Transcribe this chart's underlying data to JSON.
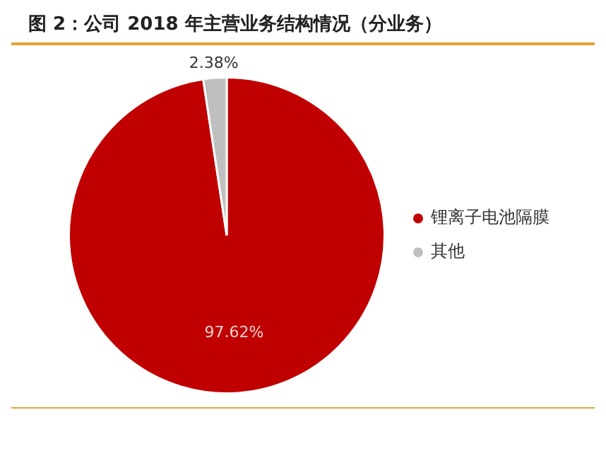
{
  "chart_data": {
    "type": "pie",
    "title": "图 2：公司 2018 年主营业务结构情况（分业务）",
    "categories": [
      "锂离子电池隔膜",
      "其他"
    ],
    "values": [
      97.62,
      2.38
    ],
    "colors": [
      "#c00000",
      "#bfbfbf"
    ],
    "value_labels": [
      "97.62%",
      "2.38%"
    ],
    "legend": "right"
  }
}
